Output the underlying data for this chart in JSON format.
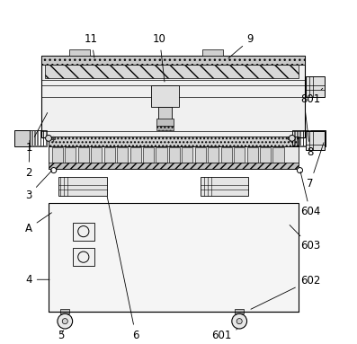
{
  "bg_color": "#ffffff",
  "line_color": "#000000",
  "fontsize": 8.5
}
